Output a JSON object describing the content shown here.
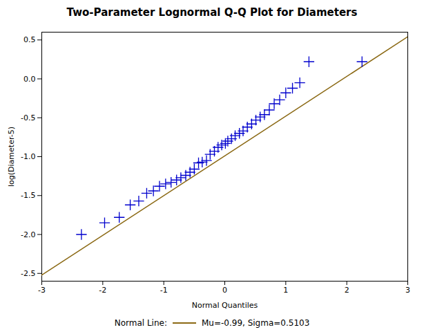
{
  "chart_data": {
    "type": "scatter",
    "title": "Two-Parameter Lognormal Q-Q Plot for Diameters",
    "xlabel": "Normal Quantiles",
    "ylabel": "log(Diameter-5)",
    "xlim": [
      -3,
      3
    ],
    "ylim": [
      -2.6,
      0.6
    ],
    "xticks": [
      -3,
      -2,
      -1,
      0,
      1,
      2,
      3
    ],
    "yticks": [
      {
        "value": -2.5,
        "label": "-2.5"
      },
      {
        "value": -2.0,
        "label": "-2.0"
      },
      {
        "value": -1.5,
        "label": "-1.5"
      },
      {
        "value": -1.0,
        "label": "-1.0"
      },
      {
        "value": -0.5,
        "label": "-0.5"
      },
      {
        "value": 0.0,
        "label": "0.0"
      },
      {
        "value": 0.5,
        "label": "0.5"
      }
    ],
    "grid": false,
    "legend": "bottom",
    "legend_title": "Normal Line:",
    "series": [
      {
        "name": "Mu=-0.99, Sigma=0.5103",
        "type": "line",
        "color": "#8B6914",
        "line_style": "solid",
        "x": [
          -3,
          3
        ],
        "values": [
          -2.5209,
          0.5409
        ]
      },
      {
        "type": "scatter",
        "marker": "plus",
        "color": "#0000CD",
        "x": [
          -2.35,
          -1.97,
          -1.73,
          -1.55,
          -1.41,
          -1.28,
          -1.17,
          -1.07,
          -0.97,
          -0.88,
          -0.79,
          -0.72,
          -0.64,
          -0.57,
          -0.5,
          -0.43,
          -0.37,
          -0.3,
          -0.24,
          -0.17,
          -0.11,
          -0.05,
          0.01,
          0.05,
          0.11,
          0.17,
          0.24,
          0.3,
          0.37,
          0.44,
          0.51,
          0.58,
          0.65,
          0.73,
          0.81,
          0.9,
          1.0,
          1.11,
          1.23,
          1.38,
          2.25
        ],
        "values": [
          -2.0,
          -1.85,
          -1.78,
          -1.62,
          -1.57,
          -1.47,
          -1.44,
          -1.38,
          -1.35,
          -1.33,
          -1.3,
          -1.27,
          -1.24,
          -1.2,
          -1.16,
          -1.08,
          -1.07,
          -1.05,
          -0.97,
          -0.93,
          -0.88,
          -0.85,
          -0.83,
          -0.8,
          -0.77,
          -0.73,
          -0.7,
          -0.67,
          -0.62,
          -0.58,
          -0.53,
          -0.49,
          -0.46,
          -0.4,
          -0.32,
          -0.27,
          -0.18,
          -0.12,
          -0.05,
          0.22,
          0.22
        ]
      }
    ]
  }
}
